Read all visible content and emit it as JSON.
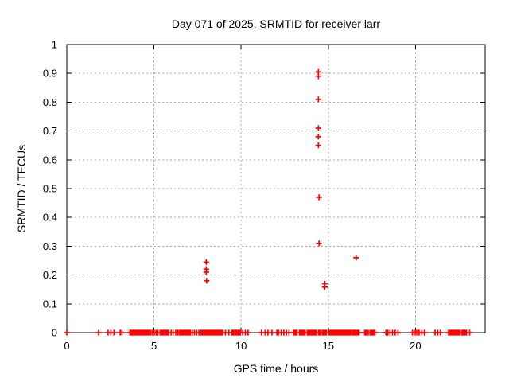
{
  "title": "Day 071 of 2025, SRMTID for receiver larr",
  "colors": {
    "marker": "#ff0000",
    "grid": "#a8a8a8",
    "axis": "#000000",
    "background": "#ffffff",
    "text": "#000000"
  },
  "chart_data": {
    "type": "scatter",
    "title": "Day 071 of 2025, SRMTID for receiver larr",
    "xlabel": "GPS time / hours",
    "ylabel": "SRMTID / TECUs",
    "xlim": [
      0,
      24
    ],
    "ylim": [
      0,
      1
    ],
    "x_ticks": [
      0,
      5,
      10,
      15,
      20
    ],
    "x_tick_labels": [
      "0",
      "5",
      "10",
      "15",
      "20"
    ],
    "y_ticks": [
      0,
      0.1,
      0.2,
      0.3,
      0.4,
      0.5,
      0.6,
      0.7,
      0.8,
      0.9,
      1
    ],
    "y_tick_labels": [
      "0",
      "0.1",
      "0.2",
      "0.3",
      "0.4",
      "0.5",
      "0.6",
      "0.7",
      "0.8",
      "0.9",
      "1"
    ],
    "grid": true,
    "legend": "none",
    "marker": "plus",
    "marker_color": "#ff0000",
    "points": [
      [
        8.0,
        0.245
      ],
      [
        8.0,
        0.22
      ],
      [
        8.0,
        0.21
      ],
      [
        8.02,
        0.18
      ],
      [
        14.43,
        0.905
      ],
      [
        14.43,
        0.89
      ],
      [
        14.43,
        0.81
      ],
      [
        14.43,
        0.71
      ],
      [
        14.43,
        0.68
      ],
      [
        14.43,
        0.65
      ],
      [
        14.47,
        0.47
      ],
      [
        14.47,
        0.31
      ],
      [
        14.8,
        0.17
      ],
      [
        14.8,
        0.158
      ],
      [
        16.6,
        0.26
      ]
    ],
    "baseline_y0_segments": [
      [
        3.62,
        4.85
      ],
      [
        5.35,
        5.85
      ],
      [
        6.45,
        7.12
      ],
      [
        7.7,
        8.9
      ],
      [
        9.55,
        9.95
      ],
      [
        13.0,
        13.21
      ],
      [
        13.35,
        13.67
      ],
      [
        13.8,
        14.35
      ],
      [
        14.43,
        14.58
      ],
      [
        14.65,
        14.9
      ],
      [
        15.04,
        16.33
      ],
      [
        16.41,
        16.79
      ],
      [
        17.09,
        17.32
      ],
      [
        17.4,
        17.7
      ],
      [
        21.9,
        22.57
      ],
      [
        22.65,
        22.95
      ]
    ],
    "baseline_y0_singles": [
      0.0,
      1.83,
      2.37,
      2.53,
      2.71,
      3.06,
      3.16,
      4.92,
      5.02,
      5.12,
      5.22,
      5.98,
      6.1,
      6.25,
      6.36,
      7.2,
      7.32,
      7.45,
      7.58,
      8.95,
      9.1,
      9.3,
      9.48,
      10.09,
      10.24,
      10.4,
      11.16,
      11.38,
      11.54,
      11.77,
      12.05,
      12.1,
      12.15,
      12.3,
      12.45,
      12.6,
      12.75,
      18.31,
      18.42,
      18.54,
      18.69,
      18.84,
      19.0,
      19.83,
      19.93,
      20.03,
      20.13,
      20.21,
      20.37,
      20.52,
      21.13,
      21.28,
      21.43,
      23.11
    ]
  }
}
